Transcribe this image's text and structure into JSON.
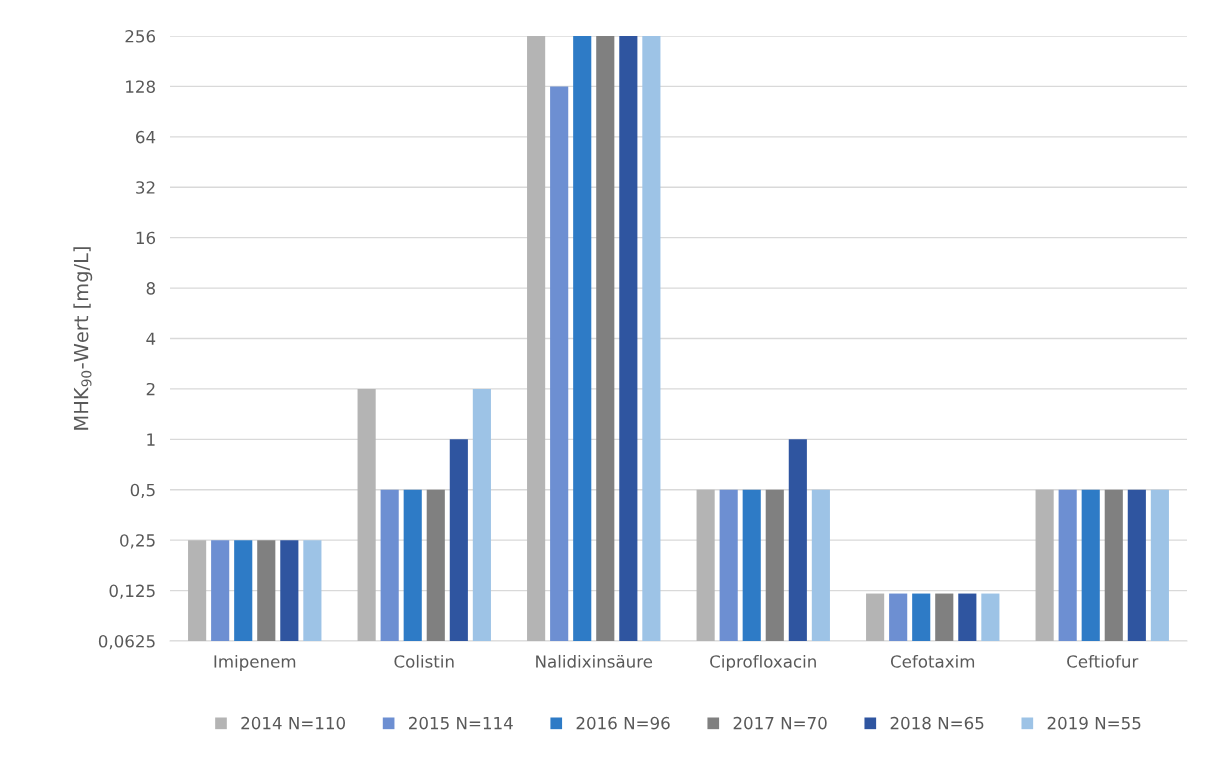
{
  "chart_data": {
    "type": "bar",
    "ylabel": "MHK$_{90}$-Wert [mg/L]",
    "log": "y",
    "grid": "y",
    "legend": "bottom",
    "categories": [
      "Imipenem",
      "Colistin",
      "Nalidixinsäure",
      "Ciprofloxacin",
      "Cefotaxim",
      "Ceftiofur"
    ],
    "ylim": [
      0.0625,
      256
    ],
    "yticks": [
      {
        "value": 0.0625,
        "label": "0,0625"
      },
      {
        "value": 0.125,
        "label": "0,125"
      },
      {
        "value": 0.25,
        "label": "0,25"
      },
      {
        "value": 0.5,
        "label": "0,5"
      },
      1,
      2,
      4,
      8,
      16,
      32,
      64,
      128,
      256
    ],
    "series": [
      {
        "name": "2014 N=110",
        "color": "#b4b4b4",
        "values": [
          0.25,
          2,
          256,
          0.5,
          0.12,
          0.5
        ]
      },
      {
        "name": "2015 N=114",
        "color": "#6d8fd2",
        "values": [
          0.25,
          0.5,
          128,
          0.5,
          0.12,
          0.5
        ]
      },
      {
        "name": "2016 N=96",
        "color": "#2e7bc6",
        "values": [
          0.25,
          0.5,
          256,
          0.5,
          0.12,
          0.5
        ]
      },
      {
        "name": "2017 N=70",
        "color": "#808080",
        "values": [
          0.25,
          0.5,
          256,
          0.5,
          0.12,
          0.5
        ]
      },
      {
        "name": "2018 N=65",
        "color": "#2f55a0",
        "values": [
          0.25,
          1,
          256,
          1,
          0.12,
          0.5
        ]
      },
      {
        "name": "2019 N=55",
        "color": "#9dc3e6",
        "values": [
          0.25,
          2,
          256,
          0.5,
          0.12,
          0.5
        ]
      }
    ]
  }
}
